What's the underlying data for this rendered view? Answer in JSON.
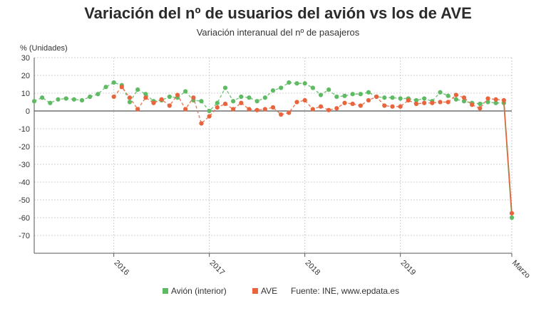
{
  "chart_data": {
    "type": "line",
    "title": "Variación del nº de usuarios del avión vs los de AVE",
    "subtitle": "Variación interanual del nº de pasajeros",
    "ylabel": "% (Unidades)",
    "xlabel": "",
    "ylim": [
      -80,
      30
    ],
    "yticks": [
      30,
      20,
      10,
      0,
      -10,
      -20,
      -30,
      -40,
      -50,
      -60,
      -70
    ],
    "grid": true,
    "legend_position": "bottom",
    "source": "Fuente: INE, www.epdata.es",
    "x_tick_labels": [
      {
        "label": "2016",
        "x": "2016-01"
      },
      {
        "label": "2017",
        "x": "2017-01"
      },
      {
        "label": "2018",
        "x": "2018-01"
      },
      {
        "label": "2019",
        "x": "2019-01"
      },
      {
        "label": "Marzo",
        "x": "2020-03"
      }
    ],
    "series": [
      {
        "name": "Avión (interior)",
        "color": "#5fba64",
        "points": [
          [
            "2015-03",
            5.5
          ],
          [
            "2015-04",
            7.5
          ],
          [
            "2015-05",
            4.5
          ],
          [
            "2015-06",
            6.5
          ],
          [
            "2015-07",
            7.0
          ],
          [
            "2015-08",
            6.5
          ],
          [
            "2015-09",
            6.0
          ],
          [
            "2015-10",
            8.0
          ],
          [
            "2015-11",
            9.5
          ],
          [
            "2015-12",
            13.5
          ],
          [
            "2016-01",
            16.0
          ],
          [
            "2016-02",
            14.5
          ],
          [
            "2016-03",
            5.0
          ],
          [
            "2016-04",
            12.0
          ],
          [
            "2016-05",
            9.5
          ],
          [
            "2016-06",
            5.5
          ],
          [
            "2016-07",
            6.0
          ],
          [
            "2016-08",
            8.0
          ],
          [
            "2016-09",
            7.5
          ],
          [
            "2016-10",
            11.0
          ],
          [
            "2016-11",
            6.0
          ],
          [
            "2016-12",
            5.5
          ],
          [
            "2017-01",
            0.0
          ],
          [
            "2017-02",
            4.5
          ],
          [
            "2017-03",
            13.0
          ],
          [
            "2017-04",
            5.5
          ],
          [
            "2017-05",
            8.0
          ],
          [
            "2017-06",
            7.5
          ],
          [
            "2017-07",
            5.5
          ],
          [
            "2017-08",
            7.5
          ],
          [
            "2017-09",
            11.5
          ],
          [
            "2017-10",
            13.0
          ],
          [
            "2017-11",
            16.0
          ],
          [
            "2017-12",
            15.5
          ],
          [
            "2018-01",
            15.5
          ],
          [
            "2018-02",
            13.0
          ],
          [
            "2018-03",
            9.0
          ],
          [
            "2018-04",
            12.0
          ],
          [
            "2018-05",
            8.0
          ],
          [
            "2018-06",
            8.5
          ],
          [
            "2018-07",
            9.5
          ],
          [
            "2018-08",
            9.5
          ],
          [
            "2018-09",
            10.5
          ],
          [
            "2018-10",
            8.0
          ],
          [
            "2018-11",
            7.5
          ],
          [
            "2018-12",
            7.5
          ],
          [
            "2019-01",
            7.0
          ],
          [
            "2019-02",
            7.0
          ],
          [
            "2019-03",
            6.0
          ],
          [
            "2019-04",
            7.0
          ],
          [
            "2019-05",
            5.5
          ],
          [
            "2019-06",
            10.5
          ],
          [
            "2019-07",
            8.5
          ],
          [
            "2019-08",
            6.5
          ],
          [
            "2019-09",
            5.5
          ],
          [
            "2019-10",
            4.5
          ],
          [
            "2019-11",
            4.0
          ],
          [
            "2019-12",
            5.0
          ],
          [
            "2020-01",
            4.5
          ],
          [
            "2020-02",
            4.5
          ],
          [
            "2020-03",
            -60.0
          ]
        ]
      },
      {
        "name": "AVE",
        "color": "#e8643c",
        "points": [
          [
            "2016-01",
            8.0
          ],
          [
            "2016-02",
            13.5
          ],
          [
            "2016-03",
            7.5
          ],
          [
            "2016-04",
            1.0
          ],
          [
            "2016-05",
            7.5
          ],
          [
            "2016-06",
            4.5
          ],
          [
            "2016-07",
            6.5
          ],
          [
            "2016-08",
            3.0
          ],
          [
            "2016-09",
            9.0
          ],
          [
            "2016-10",
            1.0
          ],
          [
            "2016-11",
            7.5
          ],
          [
            "2016-12",
            -7.0
          ],
          [
            "2017-01",
            -3.0
          ],
          [
            "2017-02",
            2.0
          ],
          [
            "2017-03",
            4.0
          ],
          [
            "2017-04",
            1.0
          ],
          [
            "2017-05",
            4.5
          ],
          [
            "2017-06",
            1.0
          ],
          [
            "2017-07",
            0.5
          ],
          [
            "2017-08",
            1.0
          ],
          [
            "2017-09",
            2.0
          ],
          [
            "2017-10",
            -2.0
          ],
          [
            "2017-11",
            -1.0
          ],
          [
            "2017-12",
            5.0
          ],
          [
            "2018-01",
            6.0
          ],
          [
            "2018-02",
            1.0
          ],
          [
            "2018-03",
            2.5
          ],
          [
            "2018-04",
            0.5
          ],
          [
            "2018-05",
            1.5
          ],
          [
            "2018-06",
            4.5
          ],
          [
            "2018-07",
            4.0
          ],
          [
            "2018-08",
            3.0
          ],
          [
            "2018-09",
            6.0
          ],
          [
            "2018-10",
            8.0
          ],
          [
            "2018-11",
            3.0
          ],
          [
            "2018-12",
            2.5
          ],
          [
            "2019-01",
            2.5
          ],
          [
            "2019-02",
            6.0
          ],
          [
            "2019-03",
            4.0
          ],
          [
            "2019-04",
            4.5
          ],
          [
            "2019-05",
            4.5
          ],
          [
            "2019-06",
            5.0
          ],
          [
            "2019-07",
            5.0
          ],
          [
            "2019-08",
            9.0
          ],
          [
            "2019-09",
            7.5
          ],
          [
            "2019-10",
            3.5
          ],
          [
            "2019-11",
            1.5
          ],
          [
            "2019-12",
            7.0
          ],
          [
            "2020-01",
            6.5
          ],
          [
            "2020-02",
            6.0
          ],
          [
            "2020-03",
            -57.5
          ]
        ]
      }
    ]
  }
}
